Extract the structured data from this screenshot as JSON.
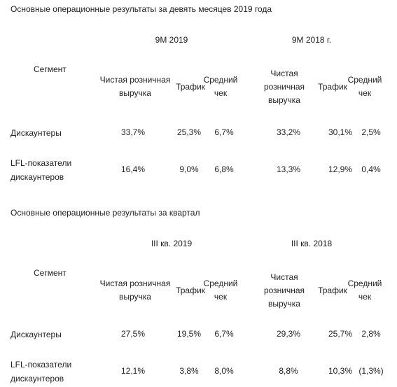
{
  "tables": [
    {
      "title": "Основные операционные результаты за девять месяцев 2019 года",
      "groups": [
        "9M 2019",
        "9M 2018 г."
      ],
      "segment_header": "Сегмент",
      "columns": [
        [
          "Чистая розничная выручка",
          "Трафик",
          "Средний чек"
        ],
        [
          "Чистая розничная выручка",
          "Трафик",
          "Средний чек"
        ]
      ],
      "rows": [
        {
          "label": "Дискаунтеры",
          "values": [
            "33,7%",
            "25,3%",
            "6,7%",
            "33,2%",
            "30,1%",
            "2,5%"
          ]
        },
        {
          "label": "LFL-показатели дискаунтеров",
          "values": [
            "16,4%",
            "9,0%",
            "6,8%",
            "13,3%",
            "12,9%",
            "0,4%"
          ]
        }
      ]
    },
    {
      "title": "Основные операционные результаты за квартал",
      "groups": [
        "III кв. 2019",
        "III кв. 2018"
      ],
      "segment_header": "Сегмент",
      "columns": [
        [
          "Чистая розничная выручка",
          "Трафик",
          "Средний чек"
        ],
        [
          "Чистая розничная выручка",
          "Трафик",
          "Средний чек"
        ]
      ],
      "rows": [
        {
          "label": "Дискаунтеры",
          "values": [
            "27,5%",
            "19,5%",
            "6,7%",
            "29,3%",
            "25,7%",
            "2,8%"
          ]
        },
        {
          "label": "LFL-показатели дискаунтеров",
          "values": [
            "12,1%",
            "3,8%",
            "8,0%",
            "8,8%",
            "10,3%",
            "(1,3%)"
          ]
        }
      ]
    }
  ]
}
